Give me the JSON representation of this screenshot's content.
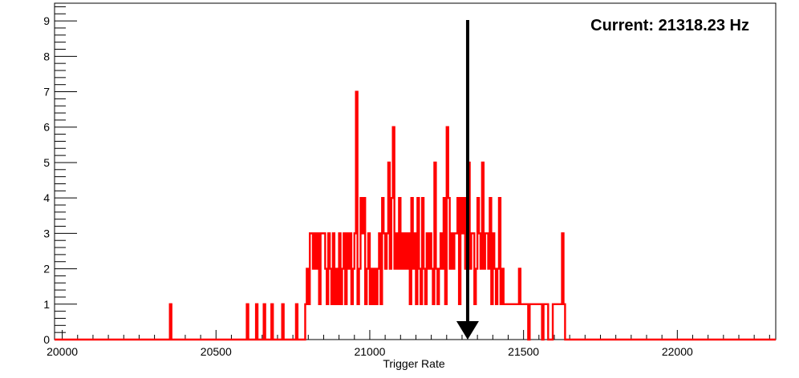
{
  "chart_data": {
    "type": "bar",
    "style": "step-histogram",
    "series_color": "#ff0000",
    "marker_color": "#000000",
    "xlabel": "Trigger Rate",
    "ylabel": "",
    "xlim": [
      19975,
      22320
    ],
    "ylim": [
      0,
      9.5
    ],
    "x_ticks": [
      "20000",
      "20500",
      "21000",
      "21500",
      "22000"
    ],
    "y_ticks": [
      "0",
      "1",
      "2",
      "3",
      "4",
      "5",
      "6",
      "7",
      "8",
      "9"
    ],
    "grid": false,
    "legend": "none",
    "annotation": {
      "text": "Current: 21318.23 Hz",
      "marker_x": 21318.23,
      "placement": "top-right"
    },
    "bin_width": 5,
    "bins": [
      [
        20350,
        1
      ],
      [
        20600,
        1
      ],
      [
        20630,
        1
      ],
      [
        20655,
        1
      ],
      [
        20680,
        1
      ],
      [
        20715,
        1
      ],
      [
        20760,
        1
      ],
      [
        20790,
        1
      ],
      [
        20795,
        2
      ],
      [
        20800,
        1
      ],
      [
        20805,
        3
      ],
      [
        20810,
        3
      ],
      [
        20815,
        2
      ],
      [
        20820,
        3
      ],
      [
        20825,
        2
      ],
      [
        20830,
        3
      ],
      [
        20835,
        1
      ],
      [
        20840,
        3
      ],
      [
        20845,
        3
      ],
      [
        20850,
        3
      ],
      [
        20855,
        2
      ],
      [
        20860,
        1
      ],
      [
        20865,
        3
      ],
      [
        20870,
        2
      ],
      [
        20875,
        1
      ],
      [
        20880,
        3
      ],
      [
        20885,
        1
      ],
      [
        20890,
        2
      ],
      [
        20895,
        1
      ],
      [
        20900,
        3
      ],
      [
        20905,
        1
      ],
      [
        20910,
        2
      ],
      [
        20915,
        3
      ],
      [
        20920,
        1
      ],
      [
        20925,
        3
      ],
      [
        20930,
        2
      ],
      [
        20935,
        3
      ],
      [
        20940,
        1
      ],
      [
        20945,
        2
      ],
      [
        20950,
        3
      ],
      [
        20955,
        7
      ],
      [
        20960,
        1
      ],
      [
        20965,
        2
      ],
      [
        20970,
        4
      ],
      [
        20975,
        3
      ],
      [
        20980,
        4
      ],
      [
        20985,
        1
      ],
      [
        20990,
        2
      ],
      [
        20995,
        3
      ],
      [
        21000,
        1
      ],
      [
        21005,
        2
      ],
      [
        21010,
        1
      ],
      [
        21015,
        2
      ],
      [
        21020,
        1
      ],
      [
        21025,
        2
      ],
      [
        21030,
        3
      ],
      [
        21035,
        1
      ],
      [
        21040,
        4
      ],
      [
        21045,
        3
      ],
      [
        21050,
        2
      ],
      [
        21055,
        3
      ],
      [
        21060,
        5
      ],
      [
        21065,
        2
      ],
      [
        21070,
        4
      ],
      [
        21075,
        6
      ],
      [
        21080,
        2
      ],
      [
        21085,
        3
      ],
      [
        21090,
        2
      ],
      [
        21095,
        4
      ],
      [
        21100,
        2
      ],
      [
        21105,
        3
      ],
      [
        21110,
        2
      ],
      [
        21115,
        3
      ],
      [
        21120,
        2
      ],
      [
        21125,
        3
      ],
      [
        21130,
        1
      ],
      [
        21135,
        4
      ],
      [
        21140,
        2
      ],
      [
        21145,
        3
      ],
      [
        21150,
        1
      ],
      [
        21155,
        4
      ],
      [
        21160,
        2
      ],
      [
        21165,
        1
      ],
      [
        21170,
        4
      ],
      [
        21175,
        2
      ],
      [
        21180,
        1
      ],
      [
        21185,
        3
      ],
      [
        21190,
        2
      ],
      [
        21195,
        3
      ],
      [
        21200,
        2
      ],
      [
        21205,
        1
      ],
      [
        21210,
        5
      ],
      [
        21215,
        2
      ],
      [
        21220,
        1
      ],
      [
        21225,
        2
      ],
      [
        21230,
        3
      ],
      [
        21235,
        2
      ],
      [
        21240,
        4
      ],
      [
        21245,
        1
      ],
      [
        21250,
        6
      ],
      [
        21255,
        4
      ],
      [
        21260,
        2
      ],
      [
        21265,
        3
      ],
      [
        21270,
        2
      ],
      [
        21275,
        3
      ],
      [
        21280,
        3
      ],
      [
        21285,
        4
      ],
      [
        21290,
        1
      ],
      [
        21295,
        4
      ],
      [
        21300,
        3
      ],
      [
        21305,
        4
      ],
      [
        21310,
        2
      ],
      [
        21315,
        3
      ],
      [
        21320,
        5
      ],
      [
        21325,
        2
      ],
      [
        21330,
        3
      ],
      [
        21335,
        3
      ],
      [
        21340,
        1
      ],
      [
        21345,
        2
      ],
      [
        21350,
        4
      ],
      [
        21355,
        3
      ],
      [
        21360,
        2
      ],
      [
        21365,
        5
      ],
      [
        21370,
        2
      ],
      [
        21375,
        3
      ],
      [
        21380,
        3
      ],
      [
        21385,
        2
      ],
      [
        21390,
        4
      ],
      [
        21395,
        1
      ],
      [
        21400,
        3
      ],
      [
        21405,
        2
      ],
      [
        21410,
        1
      ],
      [
        21415,
        2
      ],
      [
        21420,
        4
      ],
      [
        21425,
        1
      ],
      [
        21430,
        2
      ],
      [
        21435,
        1
      ],
      [
        21440,
        1
      ],
      [
        21445,
        1
      ],
      [
        21450,
        1
      ],
      [
        21455,
        1
      ],
      [
        21460,
        1
      ],
      [
        21465,
        1
      ],
      [
        21470,
        1
      ],
      [
        21475,
        1
      ],
      [
        21480,
        1
      ],
      [
        21485,
        2
      ],
      [
        21490,
        1
      ],
      [
        21495,
        1
      ],
      [
        21500,
        1
      ],
      [
        21505,
        1
      ],
      [
        21510,
        1
      ],
      [
        21520,
        1
      ],
      [
        21525,
        1
      ],
      [
        21530,
        1
      ],
      [
        21535,
        1
      ],
      [
        21540,
        1
      ],
      [
        21545,
        1
      ],
      [
        21550,
        1
      ],
      [
        21555,
        1
      ],
      [
        21565,
        1
      ],
      [
        21570,
        1
      ],
      [
        21575,
        1
      ],
      [
        21595,
        1
      ],
      [
        21600,
        1
      ],
      [
        21605,
        1
      ],
      [
        21610,
        1
      ],
      [
        21615,
        1
      ],
      [
        21620,
        1
      ],
      [
        21625,
        3
      ],
      [
        21630,
        1
      ]
    ]
  }
}
